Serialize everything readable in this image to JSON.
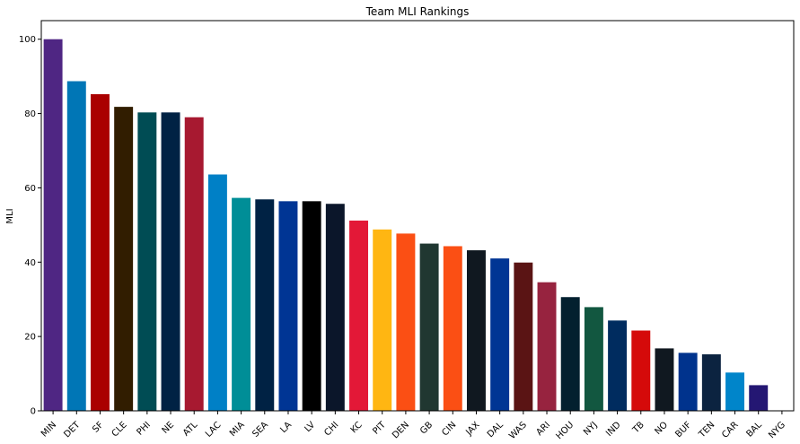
{
  "chart_data": {
    "type": "bar",
    "title": "Team MLI Rankings",
    "xlabel": "",
    "ylabel": "MLI",
    "ylim": [
      0,
      105
    ],
    "yticks": [
      0,
      20,
      40,
      60,
      80,
      100
    ],
    "grid": false,
    "categories": [
      "MIN",
      "DET",
      "SF",
      "CLE",
      "PHI",
      "NE",
      "ATL",
      "LAC",
      "MIA",
      "SEA",
      "LA",
      "LV",
      "CHI",
      "KC",
      "PIT",
      "DEN",
      "GB",
      "CIN",
      "JAX",
      "DAL",
      "WAS",
      "ARI",
      "HOU",
      "NYJ",
      "IND",
      "TB",
      "NO",
      "BUF",
      "TEN",
      "CAR",
      "BAL",
      "NYG"
    ],
    "values": [
      100,
      88.7,
      85.2,
      81.8,
      80.3,
      80.3,
      79.0,
      63.6,
      57.3,
      56.9,
      56.4,
      56.4,
      55.7,
      51.2,
      48.8,
      47.7,
      45.0,
      44.3,
      43.2,
      41.0,
      39.9,
      34.6,
      30.6,
      27.9,
      24.3,
      21.6,
      16.8,
      15.6,
      15.2,
      10.3,
      6.9,
      0
    ],
    "colors": [
      "#4F2683",
      "#0076B6",
      "#AA0000",
      "#311D00",
      "#004C54",
      "#002244",
      "#A71930",
      "#0080C6",
      "#008E97",
      "#002244",
      "#003594",
      "#000000",
      "#0B162A",
      "#E31837",
      "#FFB612",
      "#FB4F14",
      "#203731",
      "#FB4F14",
      "#101820",
      "#003594",
      "#5A1414",
      "#97233F",
      "#03202F",
      "#125740",
      "#002C5F",
      "#D50A0A",
      "#101820",
      "#00338D",
      "#0C2340",
      "#0085CA",
      "#241773",
      "#0B2265"
    ]
  }
}
